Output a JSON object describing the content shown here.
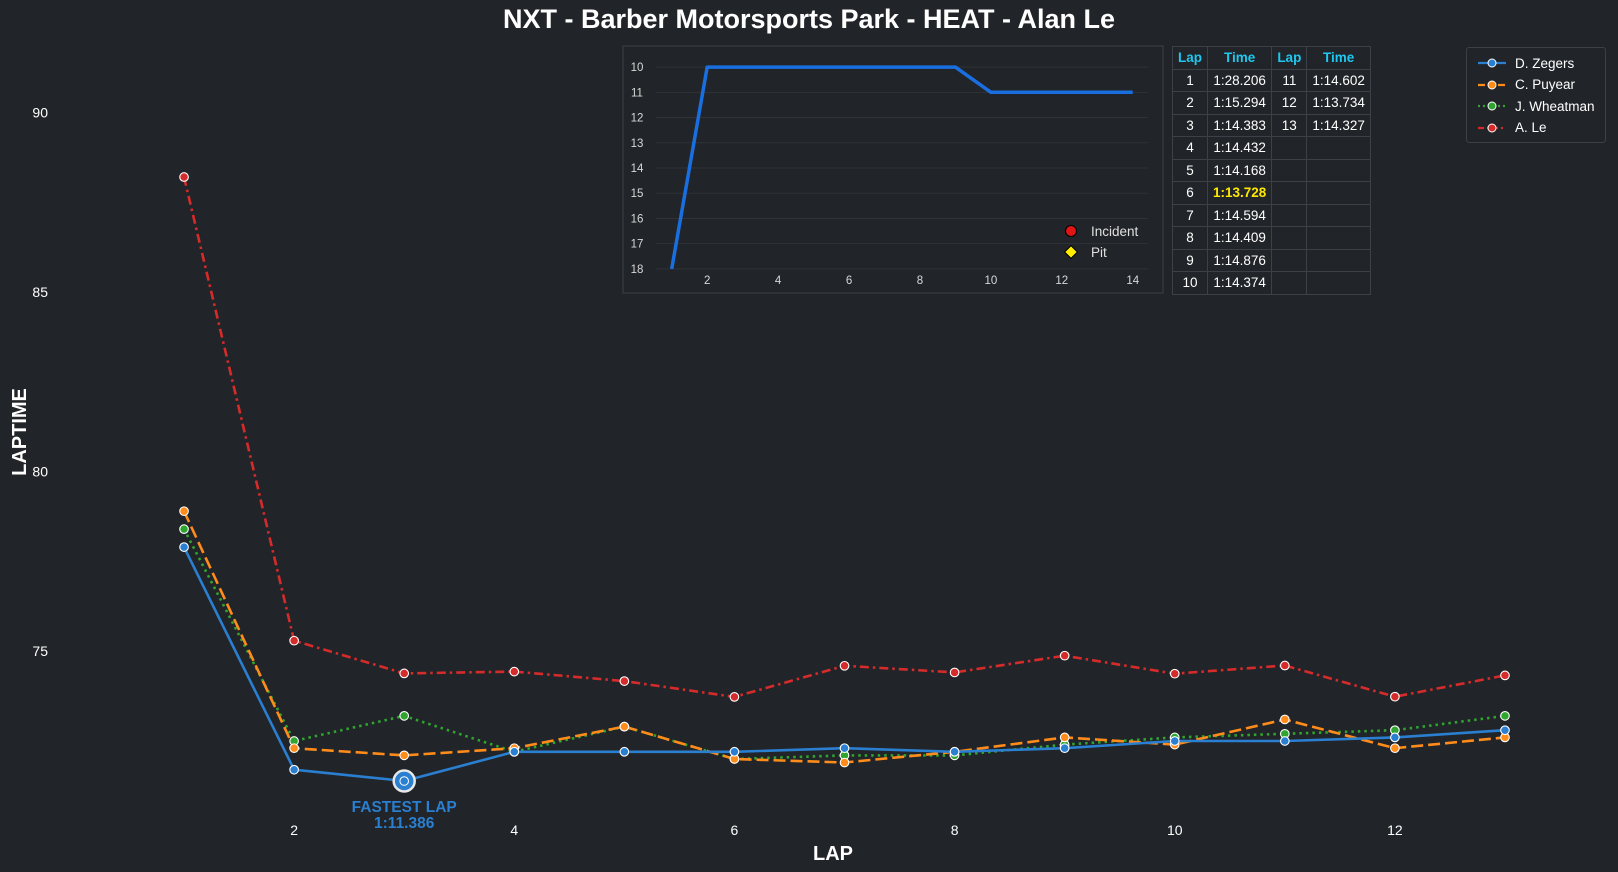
{
  "title": "NXT - Barber Motorsports Park - HEAT - Alan Le",
  "colors": {
    "background": "#212428",
    "zegers": "#2a7fd0",
    "puyear": "#ff8c1a",
    "wheatman": "#2fa52f",
    "le": "#d62b2b",
    "position_line": "#1a6fe0",
    "table_header": "#1ec8f0",
    "best_lap": "#ffe800",
    "fastest_annotation": "#2a7fd0"
  },
  "chart_data": [
    {
      "type": "line",
      "xlabel": "LAP",
      "ylabel": "LAPTIME",
      "xlim": [
        0.5,
        13.3
      ],
      "ylim": [
        70.3,
        92.3
      ],
      "xticks": [
        2,
        4,
        6,
        8,
        10,
        12
      ],
      "yticks": [
        75,
        80,
        85,
        90
      ],
      "grid": false,
      "legend_position": "top-right",
      "x": [
        1,
        2,
        3,
        4,
        5,
        6,
        7,
        8,
        9,
        10,
        11,
        12,
        13
      ],
      "series": [
        {
          "name": "D. Zegers",
          "color_key": "zegers",
          "dash": "solid",
          "values": [
            77.9,
            71.7,
            71.386,
            72.2,
            72.2,
            72.2,
            72.3,
            72.2,
            72.3,
            72.5,
            72.5,
            72.6,
            72.8
          ]
        },
        {
          "name": "C. Puyear",
          "color_key": "puyear",
          "dash": "dashed",
          "values": [
            78.9,
            72.3,
            72.1,
            72.3,
            72.9,
            72.0,
            71.9,
            72.2,
            72.6,
            72.4,
            73.1,
            72.3,
            72.6
          ]
        },
        {
          "name": "J. Wheatman",
          "color_key": "wheatman",
          "dash": "dotted",
          "values": [
            78.4,
            72.5,
            73.2,
            72.2,
            72.9,
            72.0,
            72.1,
            72.1,
            72.4,
            72.6,
            72.7,
            72.8,
            73.2
          ]
        },
        {
          "name": "A. Le",
          "color_key": "le",
          "dash": "dashdot",
          "values": [
            88.206,
            75.294,
            74.383,
            74.432,
            74.168,
            73.728,
            74.594,
            74.409,
            74.876,
            74.374,
            74.602,
            73.734,
            74.327
          ]
        }
      ],
      "annotation": {
        "series": "D. Zegers",
        "x": 3,
        "y": 71.386,
        "label": "FASTEST LAP",
        "value": "1:11.386"
      }
    },
    {
      "type": "line",
      "xlim": [
        0.5,
        14.6
      ],
      "ylim": [
        18.4,
        9.6
      ],
      "y_inverted": true,
      "xticks": [
        2,
        4,
        6,
        8,
        10,
        12,
        14
      ],
      "yticks": [
        10,
        11,
        12,
        13,
        14,
        15,
        16,
        17,
        18
      ],
      "grid": true,
      "legend_position": "bottom-right",
      "legend_entries": [
        "Incident",
        "Pit"
      ],
      "x": [
        1,
        2,
        3,
        4,
        5,
        6,
        7,
        8,
        9,
        10,
        11,
        12,
        13,
        14
      ],
      "series": [
        {
          "color_key": "position_line",
          "values": [
            18,
            10,
            10,
            10,
            10,
            10,
            10,
            10,
            10,
            11,
            11,
            11,
            11,
            11
          ]
        }
      ]
    }
  ],
  "lap_table": {
    "headers": [
      "Lap",
      "Time",
      "Lap",
      "Time"
    ],
    "rows": [
      [
        "1",
        "1:28.206",
        "11",
        "1:14.602"
      ],
      [
        "2",
        "1:15.294",
        "12",
        "1:13.734"
      ],
      [
        "3",
        "1:14.383",
        "13",
        "1:14.327"
      ],
      [
        "4",
        "1:14.432",
        "",
        ""
      ],
      [
        "5",
        "1:14.168",
        "",
        ""
      ],
      [
        "6",
        "1:13.728",
        "",
        ""
      ],
      [
        "7",
        "1:14.594",
        "",
        ""
      ],
      [
        "8",
        "1:14.409",
        "",
        ""
      ],
      [
        "9",
        "1:14.876",
        "",
        ""
      ],
      [
        "10",
        "1:14.374",
        "",
        ""
      ]
    ],
    "best_lap_row": 5
  }
}
